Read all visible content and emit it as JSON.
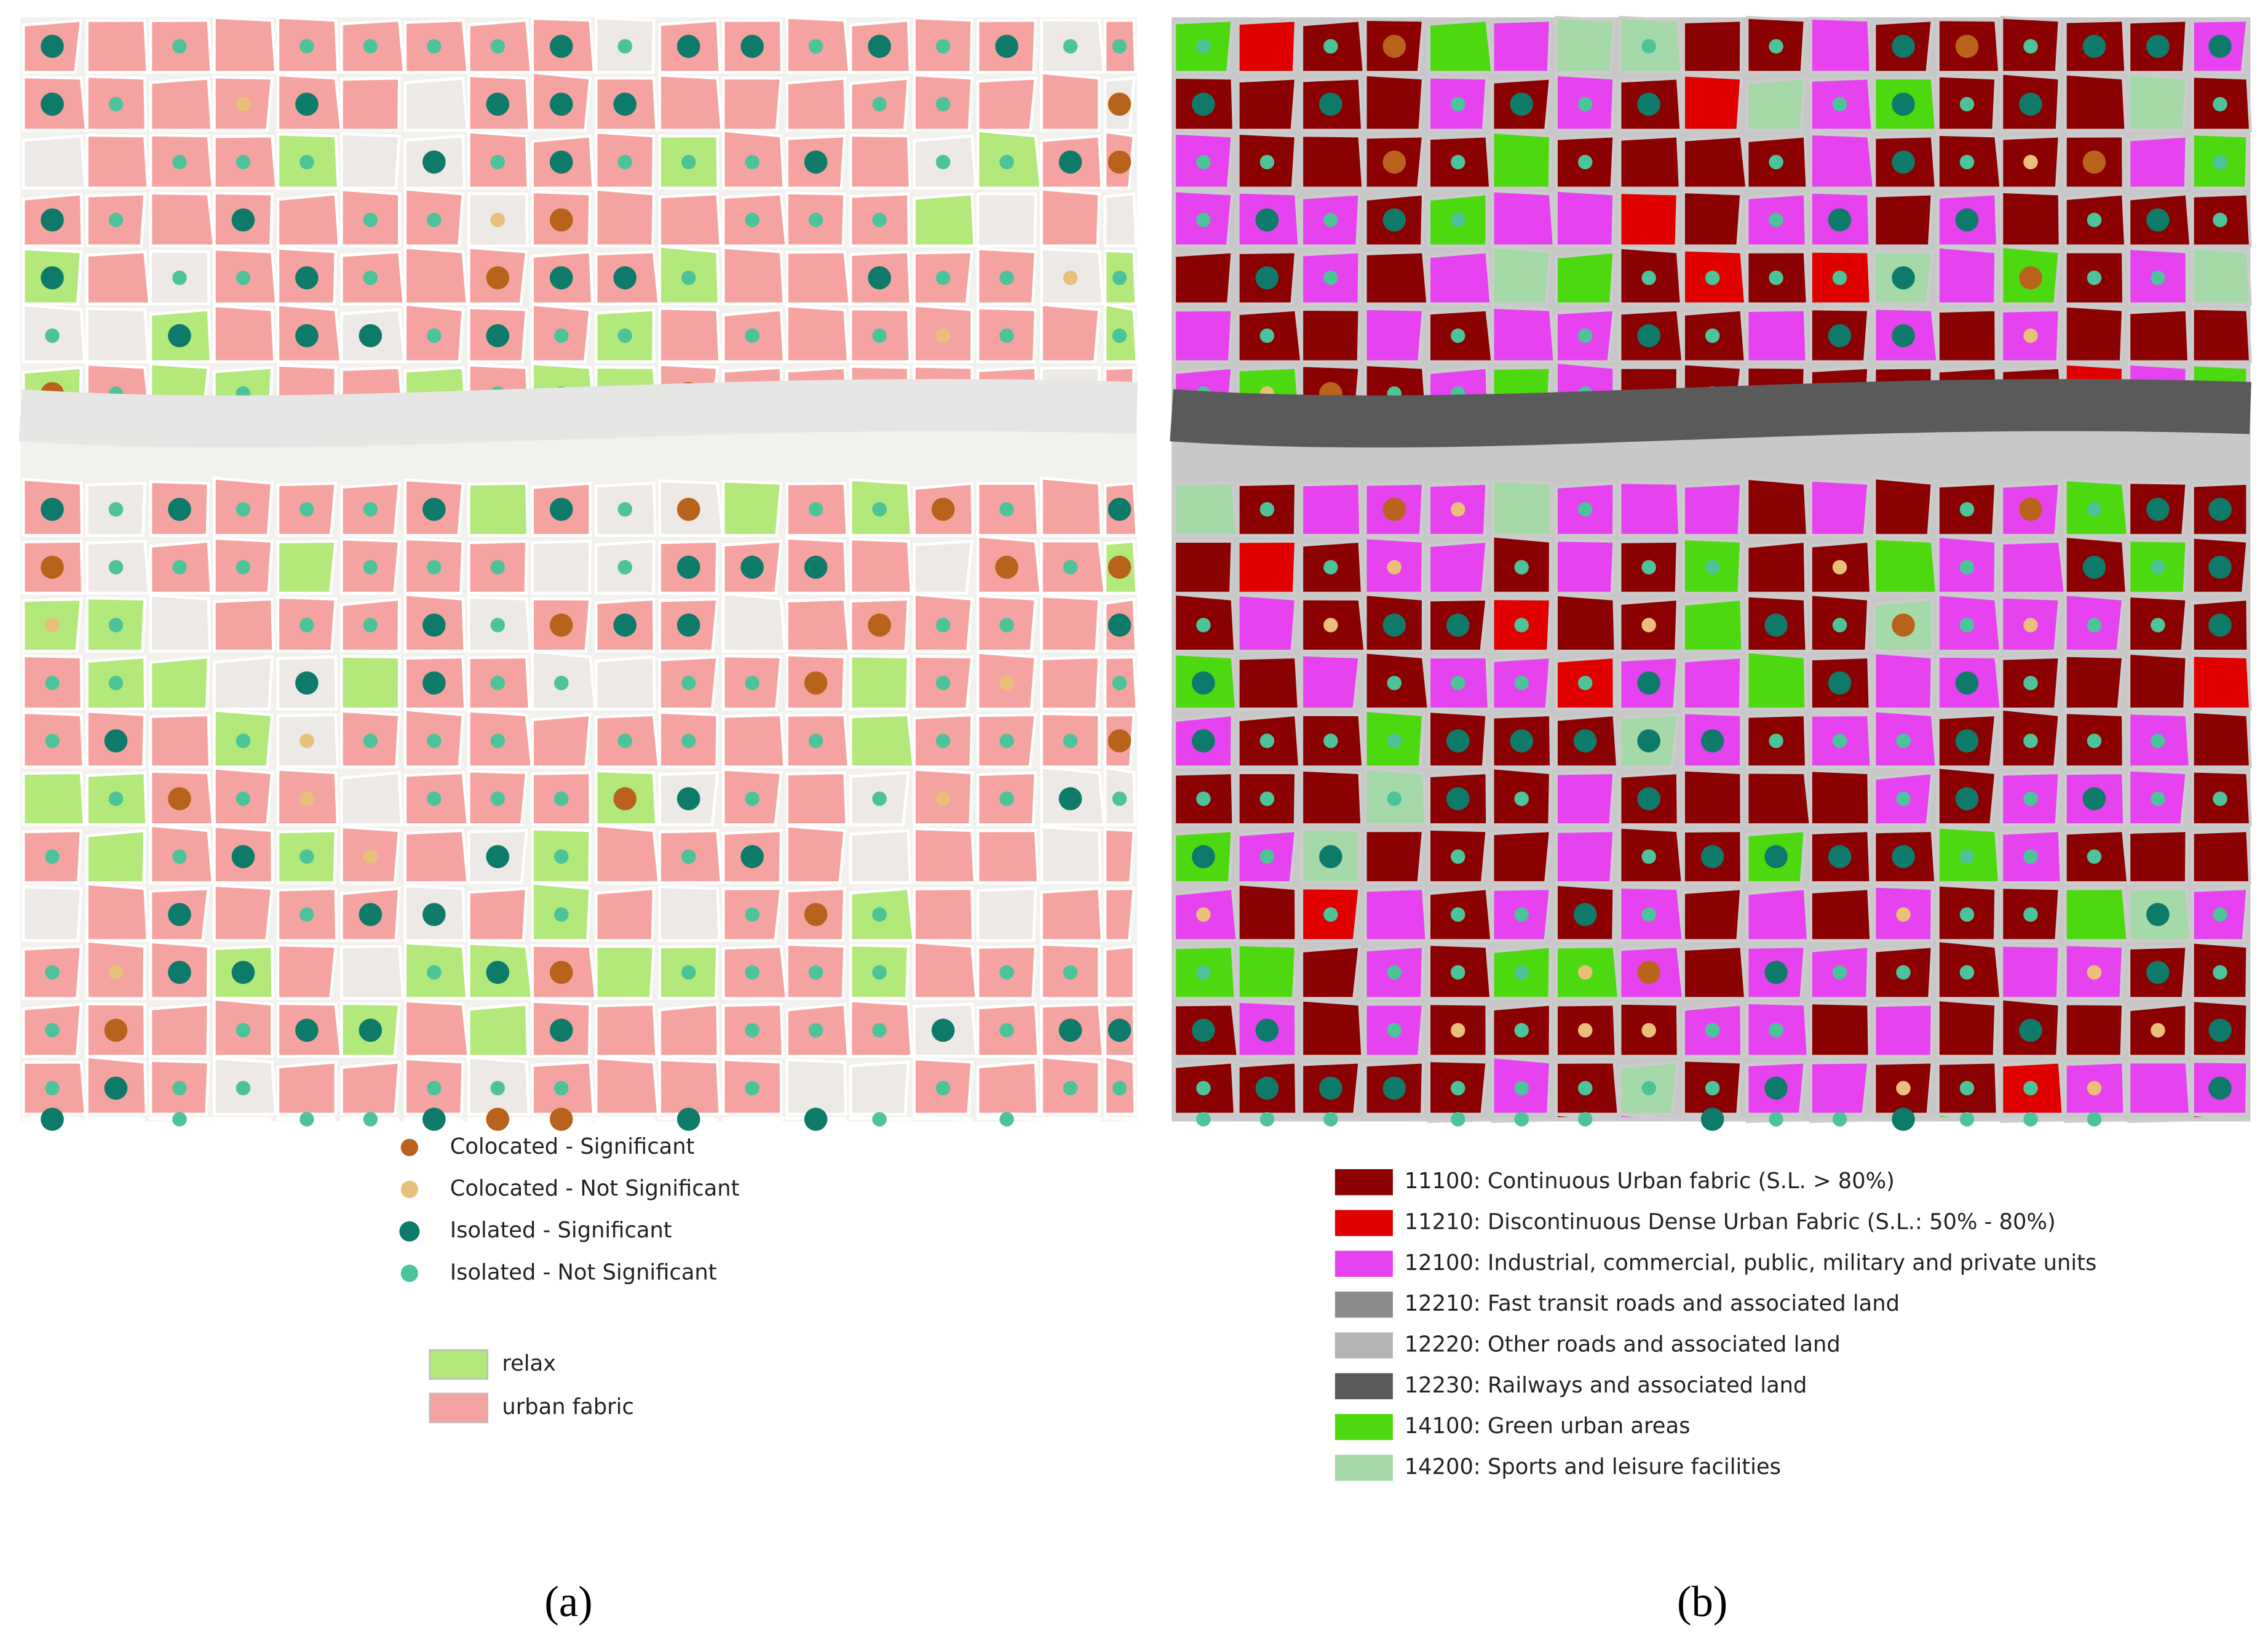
{
  "panel_a": {
    "legend_points": [
      "Colocated - Significant",
      "Colocated - Not Significant",
      "Isolated - Significant",
      "Isolated - Not Significant"
    ],
    "legend_areas": [
      "relax",
      "urban fabric"
    ],
    "caption": "(a)"
  },
  "panel_b": {
    "legend": [
      "11100: Continuous Urban fabric (S.L. > 80%)",
      "11210: Discontinuous Dense Urban Fabric (S.L.: 50% - 80%)",
      "12100: Industrial, commercial, public, military and private units",
      "12210: Fast transit roads and associated land",
      "12220: Other roads and associated land",
      "12230: Railways and associated land",
      "14100: Green urban areas",
      "14200: Sports and leisure facilities"
    ],
    "caption": "(b)"
  }
}
